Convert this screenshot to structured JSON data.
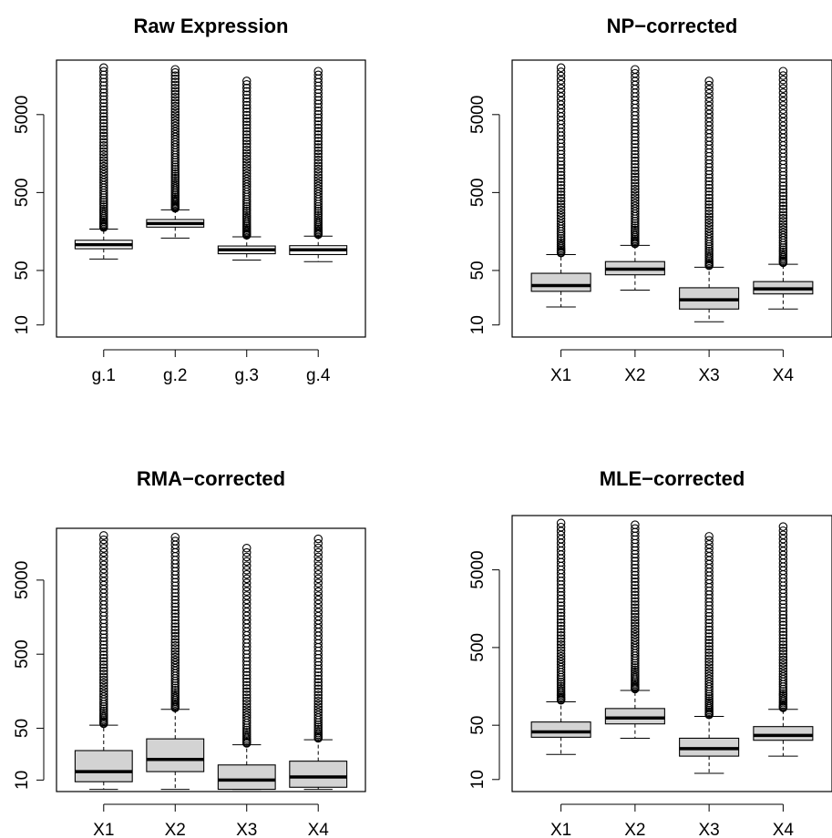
{
  "chart_data": [
    {
      "type": "boxplot",
      "title": "Raw Expression",
      "categories": [
        "g.1",
        "g.2",
        "g.3",
        "g.4"
      ],
      "y_scale": "log",
      "y_ticks": [
        10,
        50,
        500,
        5000
      ],
      "ylim": [
        7,
        25000
      ],
      "box_fill": "#ffffff",
      "boxes": [
        {
          "q1": 95,
          "median": 107,
          "q3": 122,
          "whisker_low": 70,
          "whisker_high": 170,
          "outlier_max": 20000
        },
        {
          "q1": 180,
          "median": 200,
          "q3": 225,
          "whisker_low": 130,
          "whisker_high": 300,
          "outlier_max": 19000
        },
        {
          "q1": 82,
          "median": 92,
          "q3": 103,
          "whisker_low": 68,
          "whisker_high": 135,
          "outlier_max": 13500
        },
        {
          "q1": 80,
          "median": 92,
          "q3": 104,
          "whisker_low": 65,
          "whisker_high": 138,
          "outlier_max": 18000
        }
      ]
    },
    {
      "type": "boxplot",
      "title": "NP−corrected",
      "categories": [
        "X1",
        "X2",
        "X3",
        "X4"
      ],
      "y_scale": "log",
      "y_ticks": [
        10,
        50,
        500,
        5000
      ],
      "ylim": [
        7,
        25000
      ],
      "box_fill": "#d3d3d3",
      "boxes": [
        {
          "q1": 27,
          "median": 32,
          "q3": 46,
          "whisker_low": 17,
          "whisker_high": 80,
          "outlier_max": 20000
        },
        {
          "q1": 44,
          "median": 52,
          "q3": 65,
          "whisker_low": 28,
          "whisker_high": 105,
          "outlier_max": 19000
        },
        {
          "q1": 16,
          "median": 21,
          "q3": 30,
          "whisker_low": 11,
          "whisker_high": 55,
          "outlier_max": 13500
        },
        {
          "q1": 25,
          "median": 29,
          "q3": 36,
          "whisker_low": 16,
          "whisker_high": 60,
          "outlier_max": 18000
        }
      ]
    },
    {
      "type": "boxplot",
      "title": "RMA−corrected",
      "categories": [
        "X1",
        "X2",
        "X3",
        "X4"
      ],
      "y_scale": "log",
      "y_ticks": [
        10,
        50,
        500,
        5000
      ],
      "ylim": [
        7,
        25000
      ],
      "box_fill": "#d3d3d3",
      "boxes": [
        {
          "q1": 9.5,
          "median": 13,
          "q3": 25,
          "whisker_low": 7.5,
          "whisker_high": 55,
          "outlier_max": 20000
        },
        {
          "q1": 13,
          "median": 19,
          "q3": 36,
          "whisker_low": 7.5,
          "whisker_high": 90,
          "outlier_max": 19000
        },
        {
          "q1": 7.5,
          "median": 10,
          "q3": 16,
          "whisker_low": 7.5,
          "whisker_high": 30,
          "outlier_max": 13500
        },
        {
          "q1": 8,
          "median": 11,
          "q3": 18,
          "whisker_low": 7.5,
          "whisker_high": 35,
          "outlier_max": 18000
        }
      ]
    },
    {
      "type": "boxplot",
      "title": "MLE−corrected",
      "categories": [
        "X1",
        "X2",
        "X3",
        "X4"
      ],
      "y_scale": "log",
      "y_ticks": [
        10,
        50,
        500,
        5000
      ],
      "ylim": [
        7,
        25000
      ],
      "box_fill": "#d3d3d3",
      "boxes": [
        {
          "q1": 35,
          "median": 41,
          "q3": 55,
          "whisker_low": 21,
          "whisker_high": 100,
          "outlier_max": 20000
        },
        {
          "q1": 52,
          "median": 62,
          "q3": 82,
          "whisker_low": 34,
          "whisker_high": 140,
          "outlier_max": 19000
        },
        {
          "q1": 20,
          "median": 25,
          "q3": 34,
          "whisker_low": 12,
          "whisker_high": 65,
          "outlier_max": 13500
        },
        {
          "q1": 32,
          "median": 37,
          "q3": 48,
          "whisker_low": 20,
          "whisker_high": 80,
          "outlier_max": 18000
        }
      ]
    }
  ]
}
